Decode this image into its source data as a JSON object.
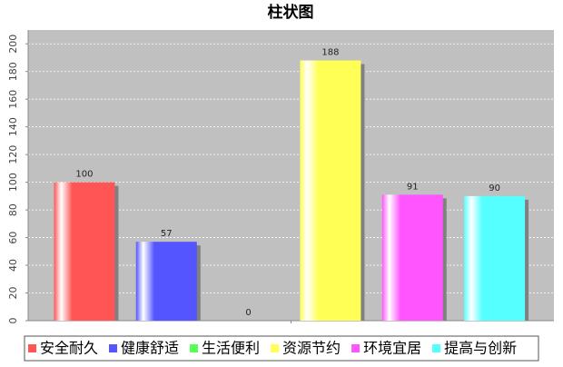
{
  "chart_data": {
    "type": "bar",
    "title": "柱状图",
    "categories": [
      null
    ],
    "series": [
      {
        "name": "安全耐久",
        "color": "#ff5555",
        "values": [
          100
        ]
      },
      {
        "name": "健康舒适",
        "color": "#5555ff",
        "values": [
          57
        ]
      },
      {
        "name": "生活便利",
        "color": "#55ff55",
        "values": [
          0
        ]
      },
      {
        "name": "资源节约",
        "color": "#ffff55",
        "values": [
          188
        ]
      },
      {
        "name": "环境宜居",
        "color": "#ff55ff",
        "values": [
          91
        ]
      },
      {
        "name": "提高与创新",
        "color": "#55ffff",
        "values": [
          90
        ]
      }
    ],
    "ylim": [
      0,
      210
    ],
    "yticks": [
      0,
      20,
      40,
      60,
      80,
      100,
      120,
      140,
      160,
      180,
      200
    ],
    "grid": true
  }
}
